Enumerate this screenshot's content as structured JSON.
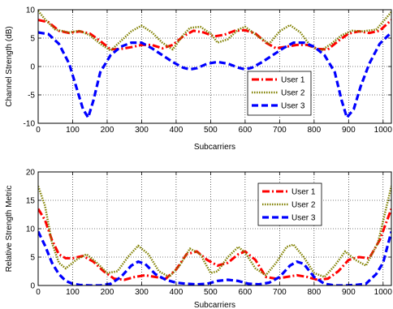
{
  "chart_data": [
    {
      "type": "line",
      "title": "",
      "xlabel": "Subcarriers",
      "ylabel": "Channel Strength (dB)",
      "xlim": [
        0,
        1024
      ],
      "ylim": [
        -10,
        10
      ],
      "xticks": [
        0,
        100,
        200,
        300,
        400,
        500,
        600,
        700,
        800,
        900,
        1000
      ],
      "yticks": [
        -10,
        -5,
        0,
        5,
        10
      ],
      "grid": true,
      "legend_position": "bottom-right",
      "series": [
        {
          "name": "User 1",
          "color": "#ff0000",
          "style": "dash-dot",
          "x": [
            0,
            30,
            60,
            90,
            120,
            150,
            180,
            210,
            240,
            270,
            300,
            330,
            360,
            390,
            420,
            450,
            480,
            510,
            540,
            570,
            600,
            630,
            660,
            690,
            720,
            750,
            780,
            810,
            840,
            870,
            900,
            930,
            960,
            990,
            1024
          ],
          "y": [
            8.2,
            7.8,
            6.3,
            5.9,
            6.2,
            5.8,
            4.5,
            3.0,
            3.1,
            3.4,
            3.8,
            3.8,
            3.2,
            3.8,
            5.3,
            6.3,
            6.0,
            5.3,
            5.6,
            6.3,
            6.4,
            5.8,
            4.2,
            3.2,
            3.5,
            3.8,
            3.8,
            3.1,
            3.0,
            4.5,
            5.8,
            6.2,
            5.9,
            6.3,
            8.2
          ]
        },
        {
          "name": "User 2",
          "color": "#808000",
          "style": "dotted",
          "x": [
            0,
            20,
            50,
            90,
            120,
            150,
            180,
            210,
            240,
            270,
            300,
            330,
            360,
            390,
            420,
            440,
            470,
            500,
            520,
            550,
            580,
            600,
            640,
            670,
            700,
            730,
            760,
            790,
            820,
            850,
            880,
            910,
            940,
            980,
            1024
          ],
          "y": [
            9.8,
            8.3,
            6.5,
            6.0,
            6.3,
            5.5,
            4.0,
            2.8,
            4.5,
            6.2,
            7.2,
            6.0,
            4.2,
            3.0,
            5.5,
            6.8,
            7.0,
            5.8,
            4.2,
            4.8,
            6.5,
            7.0,
            5.2,
            4.0,
            6.2,
            7.3,
            6.0,
            3.6,
            2.8,
            4.0,
            5.5,
            6.3,
            6.2,
            6.5,
            9.6
          ]
        },
        {
          "name": "User 3",
          "color": "#0000ff",
          "style": "dashed",
          "x": [
            0,
            30,
            60,
            90,
            110,
            130,
            145,
            160,
            180,
            210,
            240,
            270,
            300,
            330,
            360,
            390,
            420,
            440,
            460,
            490,
            520,
            550,
            580,
            600,
            620,
            650,
            680,
            710,
            740,
            770,
            800,
            830,
            860,
            880,
            895,
            915,
            935,
            960,
            990,
            1024
          ],
          "y": [
            6.0,
            5.7,
            4.0,
            0.5,
            -3.5,
            -7.5,
            -9.0,
            -6.0,
            -1.0,
            2.0,
            3.5,
            4.2,
            4.2,
            3.2,
            2.0,
            0.8,
            -0.2,
            -0.5,
            -0.3,
            0.5,
            0.8,
            0.5,
            -0.2,
            -0.5,
            -0.2,
            0.8,
            2.0,
            3.2,
            4.2,
            4.2,
            3.5,
            2.0,
            -1.0,
            -6.0,
            -9.0,
            -7.5,
            -3.5,
            0.5,
            4.0,
            6.0
          ]
        }
      ]
    },
    {
      "type": "line",
      "title": "",
      "xlabel": "Subcarriers",
      "ylabel": "Relative Strength Metric",
      "xlim": [
        0,
        1024
      ],
      "ylim": [
        0,
        20
      ],
      "xticks": [
        0,
        100,
        200,
        300,
        400,
        500,
        600,
        700,
        800,
        900,
        1000
      ],
      "yticks": [
        0,
        5,
        10,
        15,
        20
      ],
      "grid": true,
      "legend_position": "top-right",
      "series": [
        {
          "name": "User 1",
          "color": "#ff0000",
          "style": "dash-dot",
          "x": [
            0,
            20,
            40,
            60,
            80,
            100,
            130,
            160,
            190,
            220,
            250,
            280,
            310,
            340,
            370,
            400,
            430,
            460,
            490,
            520,
            550,
            580,
            600,
            630,
            660,
            690,
            720,
            750,
            780,
            810,
            840,
            870,
            900,
            930,
            960,
            990,
            1024
          ],
          "y": [
            13.5,
            11.5,
            8.0,
            5.5,
            4.8,
            4.8,
            5.2,
            4.2,
            2.5,
            1.2,
            1.0,
            1.5,
            1.8,
            1.5,
            1.2,
            2.8,
            5.5,
            6.0,
            4.5,
            3.5,
            4.0,
            5.5,
            6.0,
            4.5,
            1.5,
            1.2,
            1.5,
            1.8,
            1.5,
            1.0,
            1.2,
            2.5,
            4.5,
            5.0,
            4.8,
            8.0,
            13.5
          ]
        },
        {
          "name": "User 2",
          "color": "#808000",
          "style": "dotted",
          "x": [
            0,
            20,
            40,
            60,
            80,
            110,
            140,
            170,
            200,
            230,
            260,
            290,
            320,
            350,
            380,
            410,
            440,
            470,
            500,
            520,
            550,
            580,
            600,
            630,
            660,
            690,
            720,
            740,
            770,
            800,
            830,
            860,
            890,
            920,
            950,
            985,
            1024
          ],
          "y": [
            17.5,
            14.0,
            7.5,
            4.0,
            3.0,
            4.5,
            5.5,
            4.0,
            2.2,
            2.5,
            5.0,
            7.0,
            5.5,
            2.5,
            1.5,
            3.5,
            6.5,
            5.5,
            2.2,
            2.5,
            5.0,
            6.8,
            5.8,
            3.0,
            1.8,
            4.0,
            6.8,
            7.2,
            5.0,
            2.2,
            1.5,
            3.5,
            6.0,
            4.5,
            3.5,
            7.5,
            17.5
          ]
        },
        {
          "name": "User 3",
          "color": "#0000ff",
          "style": "dashed",
          "x": [
            0,
            20,
            40,
            60,
            80,
            100,
            120,
            150,
            180,
            210,
            240,
            270,
            290,
            310,
            340,
            370,
            400,
            430,
            460,
            490,
            520,
            550,
            580,
            610,
            640,
            670,
            700,
            730,
            750,
            770,
            800,
            830,
            860,
            890,
            920,
            950,
            980,
            1000,
            1024
          ],
          "y": [
            9.5,
            7.0,
            4.0,
            2.0,
            0.8,
            0.3,
            0.1,
            0.0,
            0.0,
            0.3,
            1.5,
            3.5,
            4.2,
            3.8,
            2.0,
            1.0,
            0.5,
            0.3,
            0.2,
            0.3,
            0.8,
            1.0,
            0.8,
            0.3,
            0.2,
            0.5,
            1.5,
            3.5,
            4.2,
            3.8,
            1.5,
            0.3,
            0.0,
            0.0,
            0.1,
            0.3,
            2.0,
            4.0,
            9.5
          ]
        }
      ]
    }
  ]
}
